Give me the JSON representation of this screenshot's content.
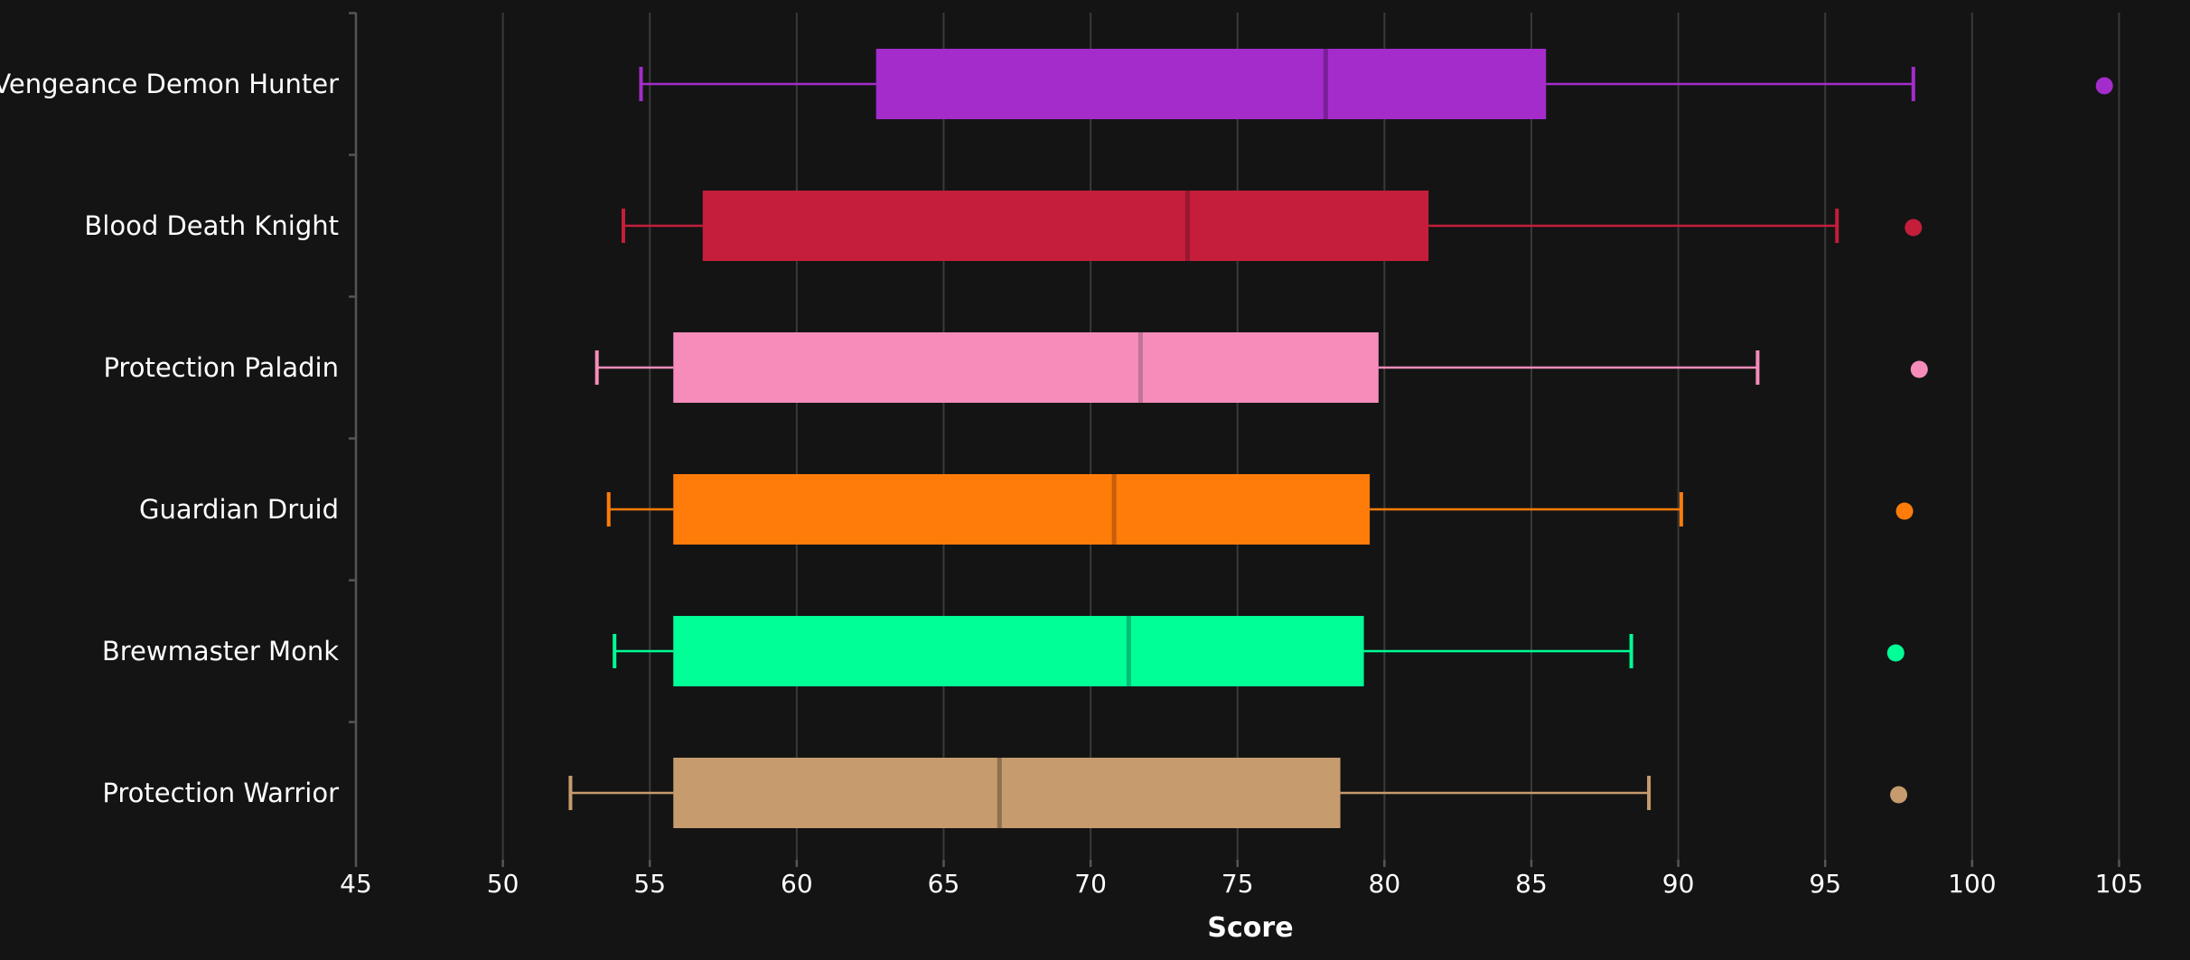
{
  "chart_data": {
    "type": "box",
    "xlabel": "Score",
    "ylabel": "",
    "xlim": [
      45,
      106
    ],
    "xticks": [
      45,
      50,
      55,
      60,
      65,
      70,
      75,
      80,
      85,
      90,
      95,
      100,
      105
    ],
    "grid": true,
    "background": "#141414",
    "series": [
      {
        "name": "Vengeance Demon Hunter",
        "color": "#a32ccb",
        "median_color": "#7a1f99",
        "whisker_low": 54.7,
        "q1": 62.7,
        "median": 78.0,
        "q3": 85.5,
        "whisker_high": 98.0,
        "outliers": [
          104.5
        ]
      },
      {
        "name": "Blood Death Knight",
        "color": "#c41e3a",
        "median_color": "#9a1630",
        "whisker_low": 54.1,
        "q1": 56.8,
        "median": 73.3,
        "q3": 81.5,
        "whisker_high": 95.4,
        "outliers": [
          98.0
        ]
      },
      {
        "name": "Protection Paladin",
        "color": "#f58cba",
        "median_color": "#c07595",
        "whisker_low": 53.2,
        "q1": 55.8,
        "median": 71.7,
        "q3": 79.8,
        "whisker_high": 92.7,
        "outliers": [
          98.2
        ]
      },
      {
        "name": "Guardian Druid",
        "color": "#ff7c0a",
        "median_color": "#c65f08",
        "whisker_low": 53.6,
        "q1": 55.8,
        "median": 70.8,
        "q3": 79.5,
        "whisker_high": 90.1,
        "outliers": [
          97.7
        ]
      },
      {
        "name": "Brewmaster Monk",
        "color": "#00ff96",
        "median_color": "#00c075",
        "whisker_low": 53.8,
        "q1": 55.8,
        "median": 71.3,
        "q3": 79.3,
        "whisker_high": 88.4,
        "outliers": [
          97.4
        ]
      },
      {
        "name": "Protection Warrior",
        "color": "#c69b6d",
        "median_color": "#8e6f4e",
        "whisker_low": 52.3,
        "q1": 55.8,
        "median": 66.9,
        "q3": 78.5,
        "whisker_high": 89.0,
        "outliers": [
          97.5
        ]
      }
    ]
  }
}
